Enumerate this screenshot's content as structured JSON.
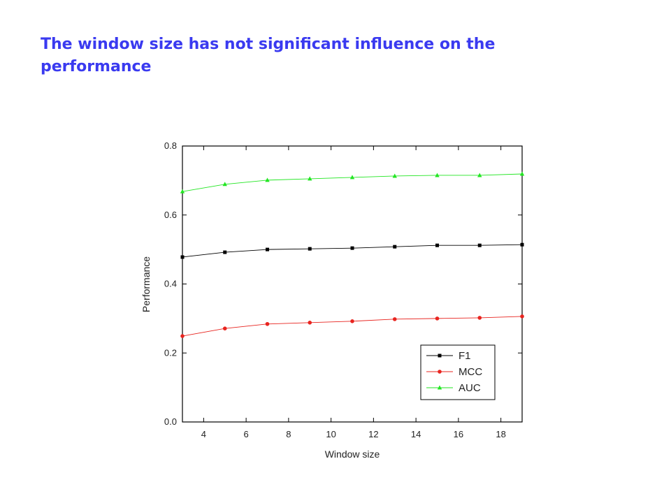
{
  "chart_data": {
    "type": "line",
    "title": "The window size has not significant influence on the performance",
    "xlabel": "Window size",
    "ylabel": "Performance",
    "x": [
      3,
      5,
      7,
      9,
      11,
      13,
      15,
      17,
      19
    ],
    "series": [
      {
        "name": "F1",
        "color": "#000000",
        "marker": "square",
        "values": [
          0.478,
          0.492,
          0.5,
          0.502,
          0.504,
          0.508,
          0.512,
          0.512,
          0.514
        ]
      },
      {
        "name": "MCC",
        "color": "#e8241f",
        "marker": "circle",
        "values": [
          0.249,
          0.271,
          0.284,
          0.288,
          0.292,
          0.298,
          0.3,
          0.302,
          0.306
        ]
      },
      {
        "name": "AUC",
        "color": "#22e622",
        "marker": "triangle",
        "values": [
          0.668,
          0.689,
          0.701,
          0.705,
          0.709,
          0.713,
          0.715,
          0.715,
          0.719
        ]
      }
    ],
    "xlim": [
      3,
      19
    ],
    "xticks": [
      4,
      6,
      8,
      10,
      12,
      14,
      16,
      18
    ],
    "ylim": [
      0,
      0.8
    ],
    "yticks": [
      {
        "value": 0,
        "label": "0.0"
      },
      0.2,
      0.4,
      0.6,
      0.8
    ],
    "legend": "lower right"
  }
}
